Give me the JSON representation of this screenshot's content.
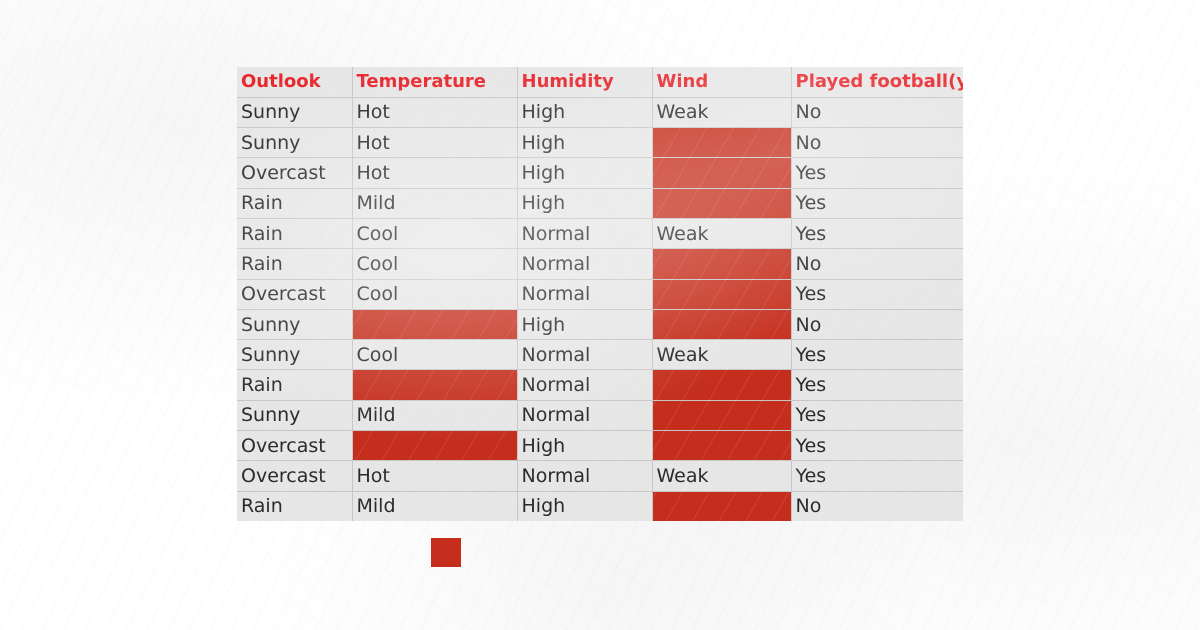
{
  "table": {
    "headers": [
      "Outlook",
      "Temperature",
      "Humidity",
      "Wind",
      "Played football(ye"
    ],
    "rows": [
      [
        "Sunny",
        "Hot",
        "High",
        "Weak",
        "No"
      ],
      [
        "Sunny",
        "Hot",
        "High",
        null,
        "No"
      ],
      [
        "Overcast",
        "Hot",
        "High",
        null,
        "Yes"
      ],
      [
        "Rain",
        "Mild",
        "High",
        null,
        "Yes"
      ],
      [
        "Rain",
        "Cool",
        "Normal",
        "Weak",
        "Yes"
      ],
      [
        "Rain",
        "Cool",
        "Normal",
        null,
        "No"
      ],
      [
        "Overcast",
        "Cool",
        "Normal",
        null,
        "Yes"
      ],
      [
        "Sunny",
        null,
        "High",
        null,
        "No"
      ],
      [
        "Sunny",
        "Cool",
        "Normal",
        "Weak",
        "Yes"
      ],
      [
        "Rain",
        null,
        "Normal",
        null,
        "Yes"
      ],
      [
        "Sunny",
        "Mild",
        "Normal",
        null,
        "Yes"
      ],
      [
        "Overcast",
        null,
        "High",
        null,
        "Yes"
      ],
      [
        "Overcast",
        "Hot",
        "Normal",
        "Weak",
        "Yes"
      ],
      [
        "Rain",
        "Mild",
        "High",
        null,
        "No"
      ]
    ]
  },
  "colors": {
    "header_text": "#e8272d",
    "mask": "#c52e1c",
    "sheet_background": "#e6e6e6"
  }
}
